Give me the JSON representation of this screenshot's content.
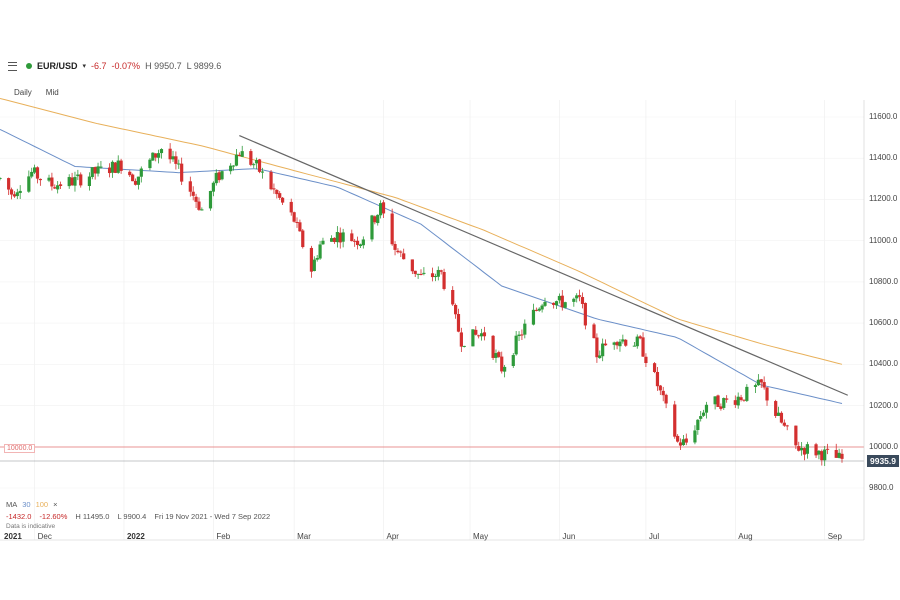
{
  "header": {
    "menu_icon": "hamburger-menu-icon",
    "status_color": "#2e9a3a",
    "symbol": "EUR/USD",
    "change": "-6.7",
    "change_pct": "-0.07%",
    "high": "H 9950.7",
    "low": "L 9899.6",
    "timeframe": "Daily",
    "price_type": "Mid"
  },
  "indicators": {
    "label": "MA",
    "ma_fast": "30",
    "ma_slow": "100",
    "close": "×"
  },
  "range_stats": {
    "change": "-1432.0",
    "change_pct": "-12.60%",
    "high": "H 11495.0",
    "low": "L 9900.4",
    "period": "Fri 19 Nov 2021 - Wed 7 Sep 2022"
  },
  "disclaimer": "Data is indicative",
  "levels": {
    "support_label": "10000.0",
    "current_price": "9935.9",
    "support_color": "#e57373",
    "current_color": "#3a4a5c"
  },
  "chart_data": {
    "type": "candlestick",
    "title": "",
    "x_tick_labels": [
      "2021",
      "Dec",
      "2022",
      "Feb",
      "Mar",
      "Apr",
      "May",
      "Jun",
      "Jul",
      "Aug",
      "Sep"
    ],
    "y_tick_labels": [
      "11600.0",
      "11400.0",
      "11200.0",
      "11000.0",
      "10800.0",
      "10600.0",
      "10400.0",
      "10200.0",
      "10000.0",
      "9800.0"
    ],
    "ylim": [
      9750,
      11800
    ],
    "grid": true,
    "colors": {
      "up": "#2e9a3a",
      "down": "#d32f2f",
      "ma30": "#6b8fc8",
      "ma100": "#e8b05a",
      "trendline": "#666666"
    },
    "ohlc_anchors": [
      [
        "2021-11-19",
        11300
      ],
      [
        "2021-11-23",
        11230
      ],
      [
        "2021-11-30",
        11330
      ],
      [
        "2021-12-07",
        11270
      ],
      [
        "2021-12-15",
        11290
      ],
      [
        "2021-12-22",
        11330
      ],
      [
        "2021-12-31",
        11370
      ],
      [
        "2022-01-05",
        11300
      ],
      [
        "2022-01-14",
        11450
      ],
      [
        "2022-01-20",
        11340
      ],
      [
        "2022-01-28",
        11150
      ],
      [
        "2022-02-02",
        11300
      ],
      [
        "2022-02-10",
        11430
      ],
      [
        "2022-02-16",
        11360
      ],
      [
        "2022-02-24",
        11200
      ],
      [
        "2022-03-01",
        11100
      ],
      [
        "2022-03-07",
        10860
      ],
      [
        "2022-03-10",
        10980
      ],
      [
        "2022-03-16",
        11030
      ],
      [
        "2022-03-24",
        11000
      ],
      [
        "2022-03-31",
        11160
      ],
      [
        "2022-04-05",
        10960
      ],
      [
        "2022-04-14",
        10820
      ],
      [
        "2022-04-21",
        10840
      ],
      [
        "2022-04-28",
        10520
      ],
      [
        "2022-05-06",
        10550
      ],
      [
        "2022-05-12",
        10380
      ],
      [
        "2022-05-20",
        10580
      ],
      [
        "2022-05-27",
        10730
      ],
      [
        "2022-06-01",
        10700
      ],
      [
        "2022-06-08",
        10710
      ],
      [
        "2022-06-14",
        10450
      ],
      [
        "2022-06-20",
        10530
      ],
      [
        "2022-06-29",
        10500
      ],
      [
        "2022-07-05",
        10300
      ],
      [
        "2022-07-12",
        10020
      ],
      [
        "2022-07-15",
        10020
      ],
      [
        "2022-07-22",
        10210
      ],
      [
        "2022-07-29",
        10220
      ],
      [
        "2022-08-04",
        10250
      ],
      [
        "2022-08-10",
        10300
      ],
      [
        "2022-08-15",
        10160
      ],
      [
        "2022-08-22",
        10000
      ],
      [
        "2022-08-26",
        9990
      ],
      [
        "2022-09-02",
        9960
      ],
      [
        "2022-09-07",
        9935.9
      ]
    ],
    "ma30_anchors": [
      [
        "2021-11-19",
        11540
      ],
      [
        "2021-12-15",
        11360
      ],
      [
        "2022-01-20",
        11330
      ],
      [
        "2022-02-16",
        11350
      ],
      [
        "2022-03-16",
        11260
      ],
      [
        "2022-04-14",
        11080
      ],
      [
        "2022-05-12",
        10780
      ],
      [
        "2022-06-14",
        10620
      ],
      [
        "2022-07-12",
        10530
      ],
      [
        "2022-08-10",
        10300
      ],
      [
        "2022-09-07",
        10210
      ]
    ],
    "ma100_anchors": [
      [
        "2021-11-19",
        11690
      ],
      [
        "2021-12-22",
        11570
      ],
      [
        "2022-01-28",
        11460
      ],
      [
        "2022-03-01",
        11340
      ],
      [
        "2022-04-05",
        11210
      ],
      [
        "2022-05-06",
        11050
      ],
      [
        "2022-06-08",
        10850
      ],
      [
        "2022-07-12",
        10620
      ],
      [
        "2022-08-10",
        10500
      ],
      [
        "2022-09-07",
        10400
      ]
    ],
    "trendline": [
      [
        "2022-02-10",
        11510
      ],
      [
        "2022-09-09",
        10250
      ]
    ],
    "support_level": 10000.0,
    "current_price": 9935.9,
    "x_tick_dates": [
      "2021-11-19",
      "2021-12-01",
      "2022-01-01",
      "2022-02-01",
      "2022-03-01",
      "2022-04-01",
      "2022-05-01",
      "2022-06-01",
      "2022-07-01",
      "2022-08-01",
      "2022-09-01"
    ]
  }
}
